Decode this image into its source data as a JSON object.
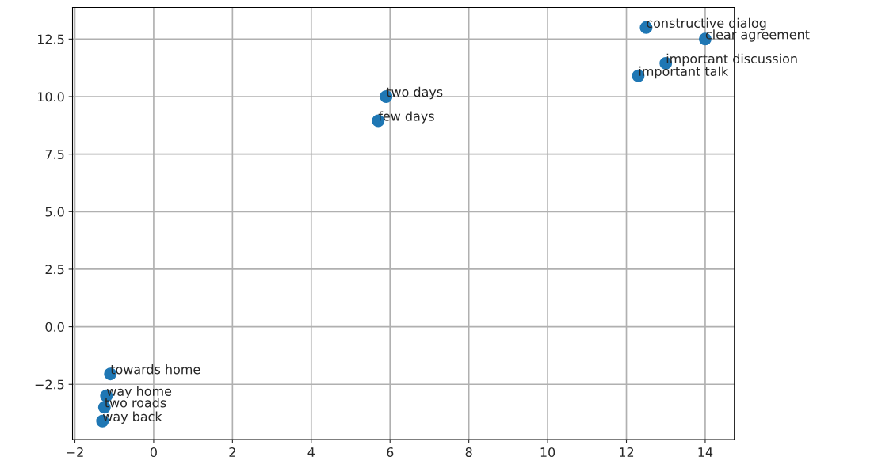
{
  "chart_data": {
    "type": "scatter",
    "x": [
      12.5,
      14.0,
      13.0,
      12.3,
      5.9,
      5.7,
      -1.1,
      -1.2,
      -1.25,
      -1.3
    ],
    "series": [
      {
        "color": "#1f77b4",
        "values": [
          13.0,
          12.5,
          11.45,
          10.9,
          10.0,
          8.95,
          -2.05,
          -3.0,
          -3.5,
          -4.1
        ]
      }
    ],
    "annotations": [
      {
        "text": "constructive dialog",
        "x": 12.5,
        "y": 13.0
      },
      {
        "text": "clear agreement",
        "x": 14.0,
        "y": 12.5
      },
      {
        "text": "important discussion",
        "x": 13.0,
        "y": 11.45
      },
      {
        "text": "important talk",
        "x": 12.3,
        "y": 10.9
      },
      {
        "text": "two days",
        "x": 5.9,
        "y": 10.0
      },
      {
        "text": "few days",
        "x": 5.7,
        "y": 8.95
      },
      {
        "text": "towards home",
        "x": -1.1,
        "y": -2.05
      },
      {
        "text": "way home",
        "x": -1.2,
        "y": -3.0
      },
      {
        "text": "two roads",
        "x": -1.25,
        "y": -3.5
      },
      {
        "text": "way back",
        "x": -1.3,
        "y": -4.1
      }
    ],
    "xlim": [
      -2.06,
      14.74
    ],
    "ylim": [
      -4.9,
      13.87
    ],
    "xticks": [
      {
        "value": -2,
        "label": "−2"
      },
      0,
      2,
      4,
      6,
      8,
      10,
      12,
      14
    ],
    "yticks": [
      {
        "value": -2.5,
        "label": "−2.5"
      },
      {
        "value": 0,
        "label": "0.0"
      },
      2.5,
      {
        "value": 5,
        "label": "5.0"
      },
      7.5,
      {
        "value": 10,
        "label": "10.0"
      },
      12.5
    ],
    "grid": true,
    "marker": "circle"
  }
}
